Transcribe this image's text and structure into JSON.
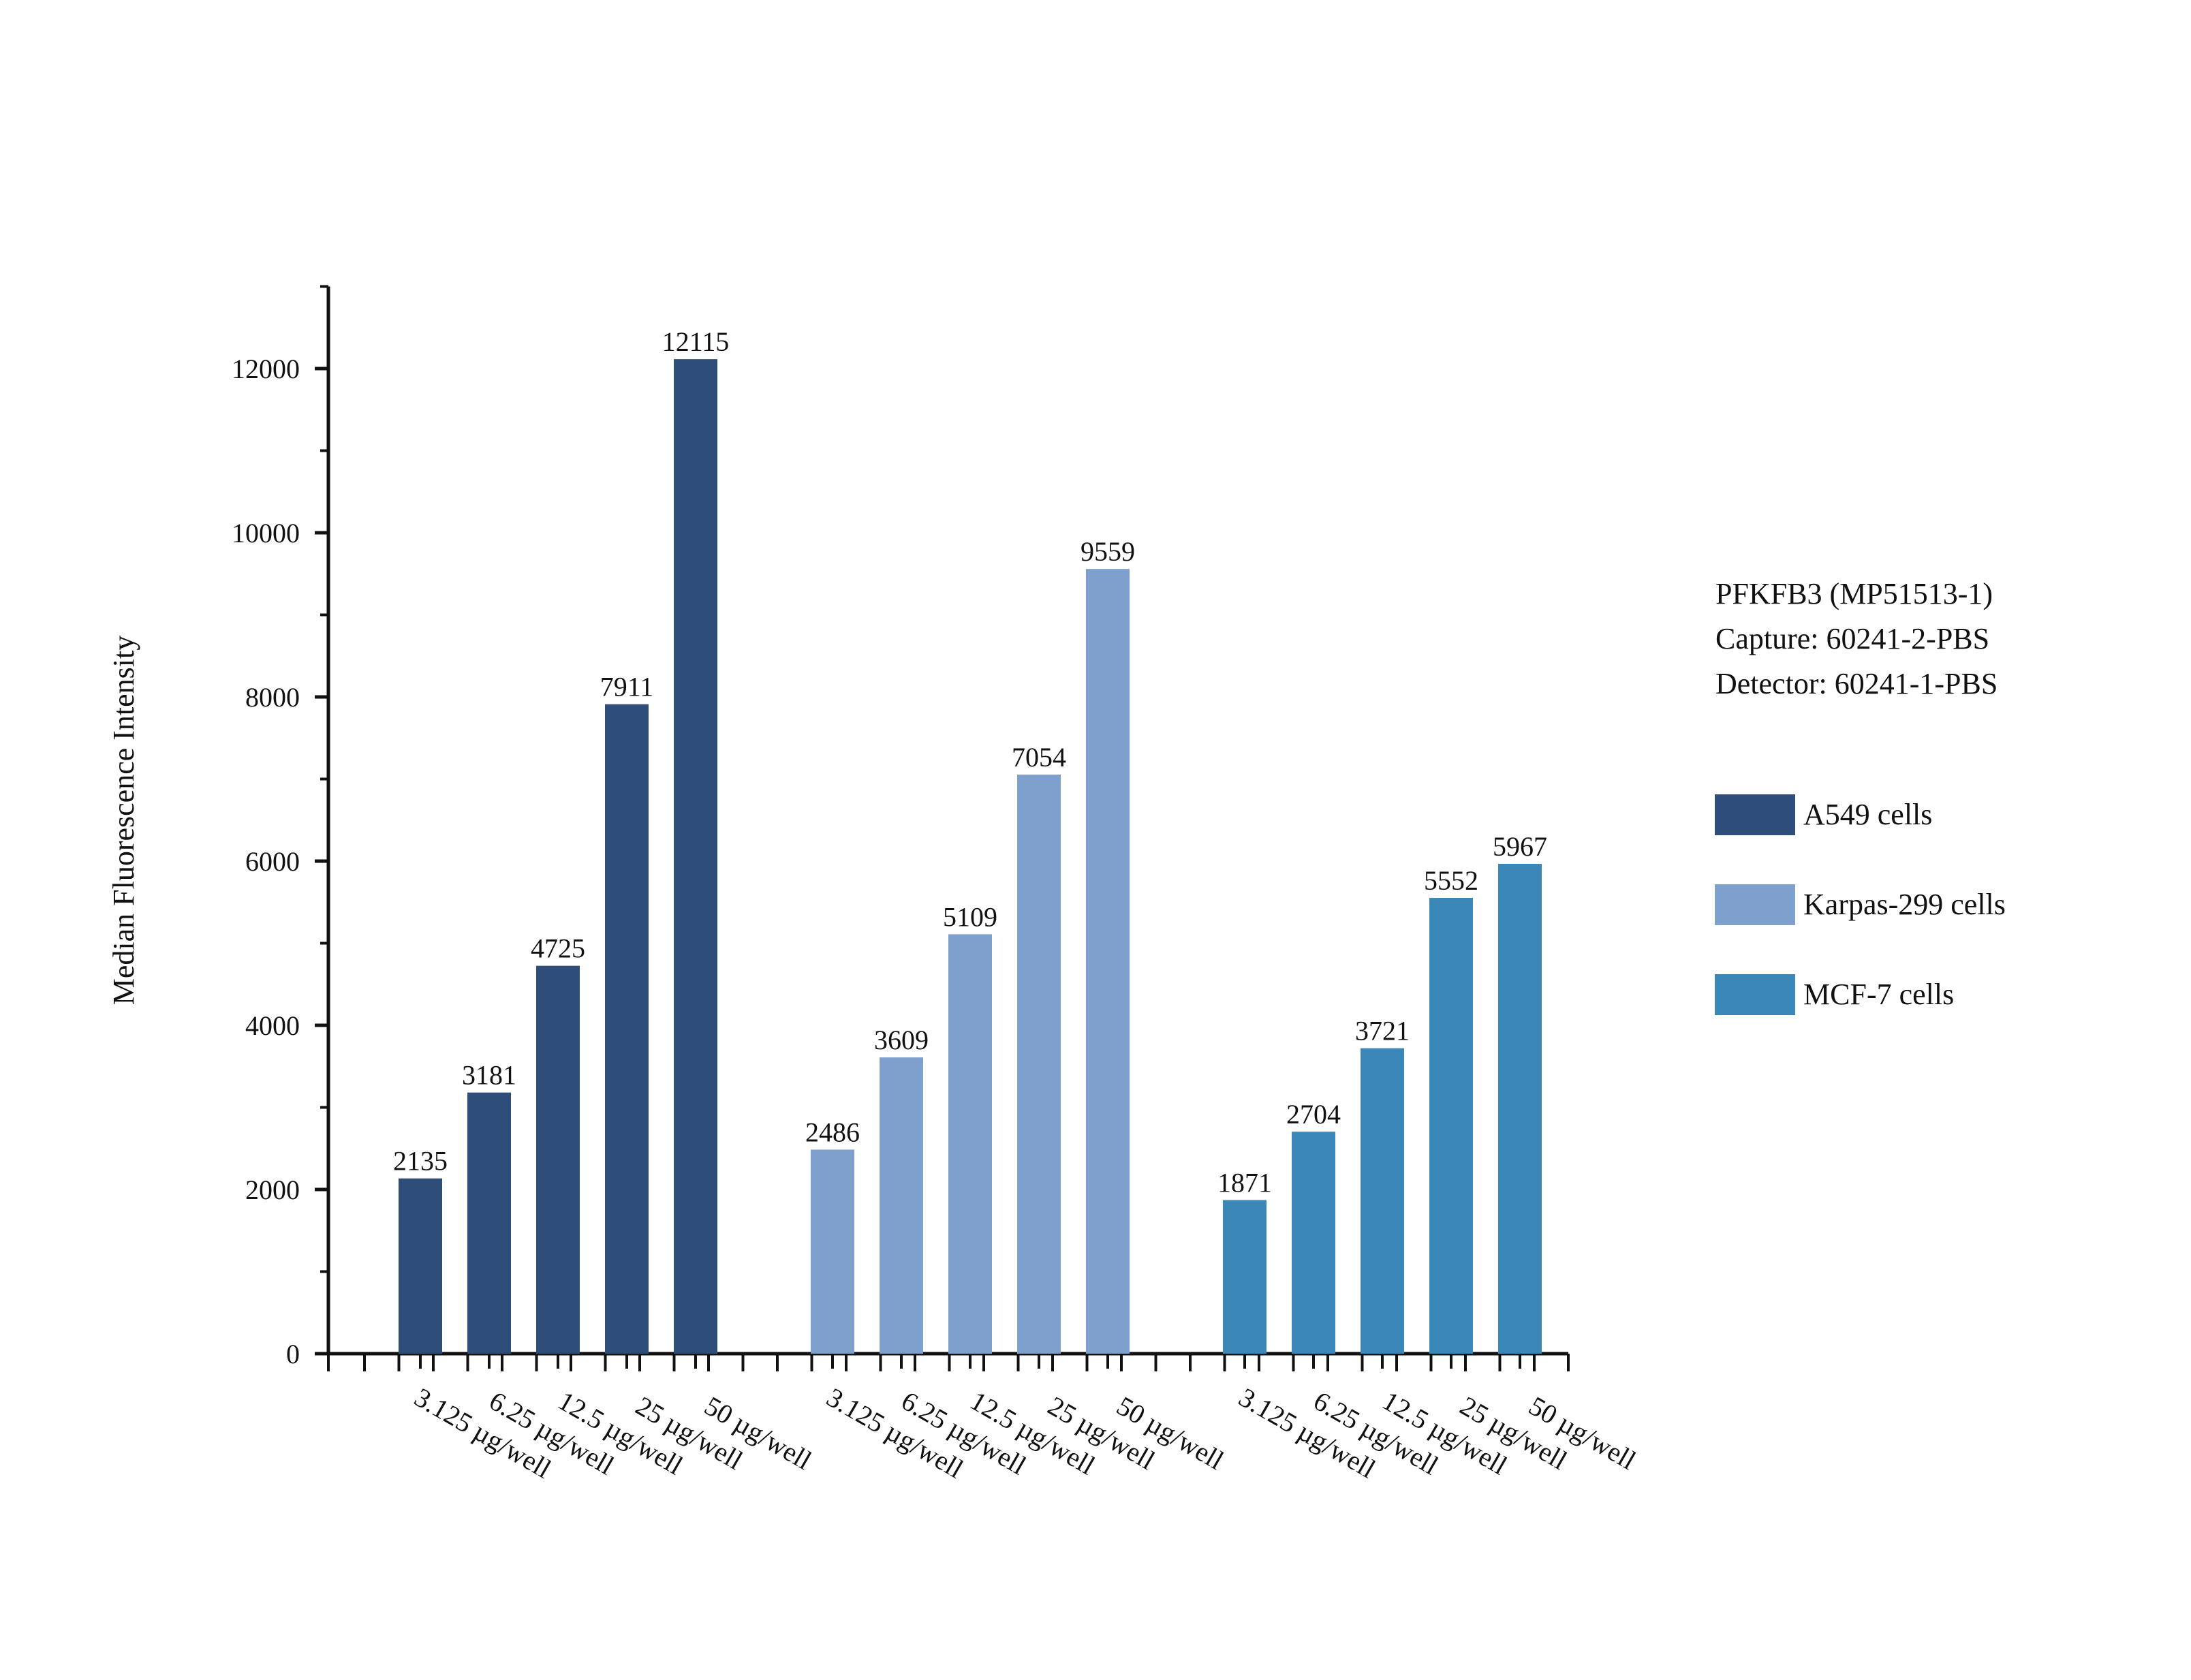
{
  "chart_data": {
    "type": "bar",
    "title": "",
    "xlabel": "",
    "ylabel": "Median Fluorescence Intensity",
    "ylim": [
      0,
      13000
    ],
    "yticks": [
      0,
      2000,
      4000,
      6000,
      8000,
      10000,
      12000
    ],
    "grid": false,
    "legend_position": "right",
    "categories": [
      "3.125 µg/well",
      "6.25 µg/well",
      "12.5 µg/well",
      "25 µg/well",
      "50 µg/well"
    ],
    "series": [
      {
        "name": "A549 cells",
        "color": "#2e4e79",
        "values": [
          2135,
          3181,
          4725,
          7911,
          12115
        ]
      },
      {
        "name": "Karpas-299 cells",
        "color": "#7f9fcd",
        "values": [
          2486,
          3609,
          5109,
          7054,
          9559
        ]
      },
      {
        "name": "MCF-7 cells",
        "color": "#3b88b8",
        "values": [
          1871,
          2704,
          3721,
          5552,
          5967
        ]
      }
    ],
    "annotation_lines": [
      "PFKFB3 (MP51513-1)",
      "Capture: 60241-2-PBS",
      "Detector: 60241-1-PBS"
    ]
  }
}
